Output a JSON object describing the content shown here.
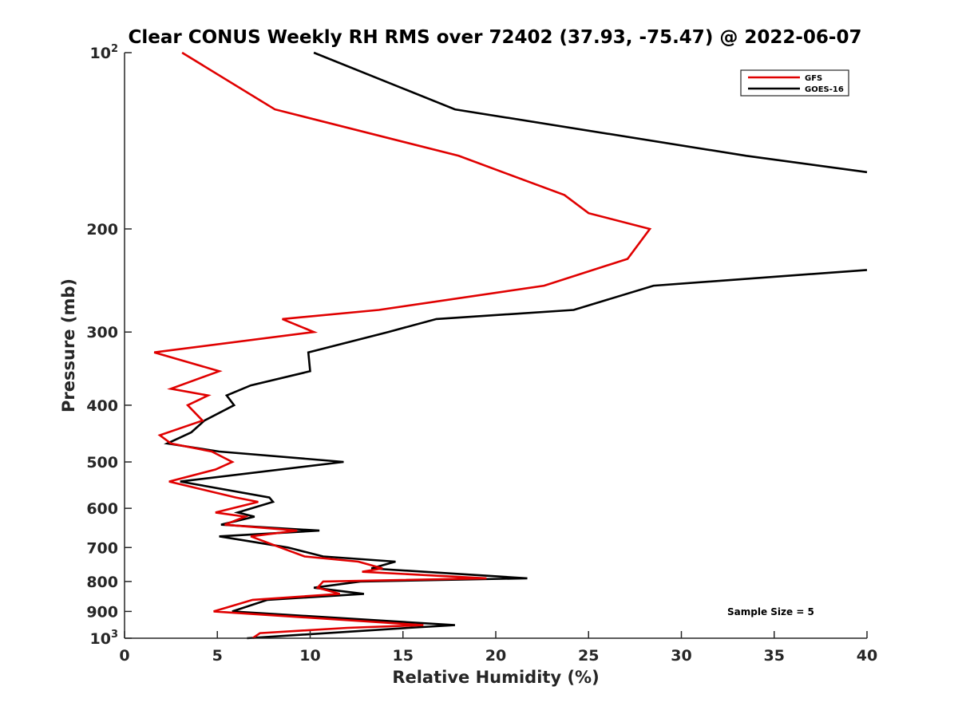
{
  "chart_data": {
    "type": "line",
    "title": "Clear CONUS Weekly RH RMS over 72402 (37.93, -75.47) @ 2022-06-07",
    "xlabel": "Relative Humidity (%)",
    "ylabel": "Pressure (mb)",
    "xlim": [
      0,
      40
    ],
    "ylim": [
      100,
      1000
    ],
    "yscale": "log",
    "y_reversed": true,
    "x_ticks": [
      0,
      5,
      10,
      15,
      20,
      25,
      30,
      35,
      40
    ],
    "x_tick_labels": [
      "0",
      "5",
      "10",
      "15",
      "20",
      "25",
      "30",
      "35",
      "40"
    ],
    "y_ticks": [
      100,
      200,
      300,
      400,
      500,
      600,
      700,
      800,
      900,
      1000
    ],
    "y_tick_labels": [
      {
        "base": "10",
        "exp": "2"
      },
      {
        "base": "200",
        "exp": ""
      },
      {
        "base": "300",
        "exp": ""
      },
      {
        "base": "400",
        "exp": ""
      },
      {
        "base": "500",
        "exp": ""
      },
      {
        "base": "600",
        "exp": ""
      },
      {
        "base": "700",
        "exp": ""
      },
      {
        "base": "800",
        "exp": ""
      },
      {
        "base": "900",
        "exp": ""
      },
      {
        "base": "10",
        "exp": "3"
      }
    ],
    "legend_position": "top-right",
    "annotation": "Sample Size = 5",
    "series": [
      {
        "name": "GFS",
        "color": "#e00000",
        "points": [
          [
            3.1,
            100
          ],
          [
            8.1,
            125
          ],
          [
            18.0,
            150
          ],
          [
            23.7,
            175
          ],
          [
            25.0,
            188
          ],
          [
            28.3,
            200
          ],
          [
            27.1,
            225
          ],
          [
            22.6,
            250
          ],
          [
            13.7,
            275
          ],
          [
            8.5,
            285
          ],
          [
            10.2,
            300
          ],
          [
            1.6,
            325
          ],
          [
            5.1,
            350
          ],
          [
            2.5,
            375
          ],
          [
            4.5,
            385
          ],
          [
            3.4,
            400
          ],
          [
            4.2,
            425
          ],
          [
            1.9,
            450
          ],
          [
            2.5,
            465
          ],
          [
            4.7,
            480
          ],
          [
            5.8,
            500
          ],
          [
            4.9,
            515
          ],
          [
            2.4,
            540
          ],
          [
            6.0,
            575
          ],
          [
            7.2,
            585
          ],
          [
            4.9,
            610
          ],
          [
            6.5,
            620
          ],
          [
            5.4,
            640
          ],
          [
            9.3,
            655
          ],
          [
            6.8,
            670
          ],
          [
            8.4,
            700
          ],
          [
            9.7,
            725
          ],
          [
            12.6,
            740
          ],
          [
            13.9,
            760
          ],
          [
            12.8,
            770
          ],
          [
            19.5,
            790
          ],
          [
            10.7,
            800
          ],
          [
            10.4,
            820
          ],
          [
            11.6,
            840
          ],
          [
            6.9,
            860
          ],
          [
            4.8,
            900
          ],
          [
            16.1,
            950
          ],
          [
            12.0,
            960
          ],
          [
            7.3,
            980
          ],
          [
            6.9,
            1000
          ]
        ]
      },
      {
        "name": "GOES-16",
        "color": "#000000",
        "points": [
          [
            10.2,
            100
          ],
          [
            17.8,
            125
          ],
          [
            33.5,
            150
          ],
          [
            40.0,
            160
          ],
          [
            null,
            null
          ],
          [
            40.0,
            235
          ],
          [
            28.5,
            250
          ],
          [
            24.2,
            275
          ],
          [
            16.8,
            285
          ],
          [
            14.2,
            300
          ],
          [
            9.9,
            325
          ],
          [
            10.0,
            350
          ],
          [
            6.8,
            370
          ],
          [
            5.5,
            385
          ],
          [
            5.9,
            400
          ],
          [
            4.3,
            425
          ],
          [
            3.6,
            445
          ],
          [
            2.3,
            465
          ],
          [
            5.1,
            480
          ],
          [
            11.8,
            500
          ],
          [
            3.0,
            540
          ],
          [
            7.8,
            575
          ],
          [
            8.0,
            585
          ],
          [
            6.1,
            610
          ],
          [
            7.0,
            620
          ],
          [
            5.2,
            640
          ],
          [
            10.5,
            655
          ],
          [
            5.1,
            670
          ],
          [
            8.8,
            700
          ],
          [
            10.7,
            725
          ],
          [
            14.6,
            740
          ],
          [
            13.3,
            760
          ],
          [
            21.7,
            790
          ],
          [
            12.7,
            800
          ],
          [
            10.2,
            820
          ],
          [
            12.9,
            840
          ],
          [
            7.7,
            860
          ],
          [
            5.8,
            900
          ],
          [
            17.8,
            950
          ],
          [
            15.3,
            960
          ],
          [
            6.6,
            1000
          ]
        ]
      }
    ]
  }
}
